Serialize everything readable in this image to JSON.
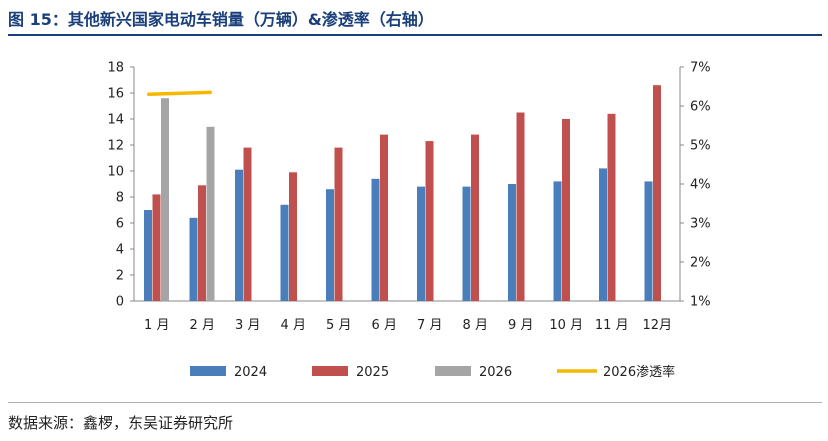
{
  "title": "图 15：其他新兴国家电动车销量（万辆）&渗透率（右轴）",
  "source": "数据来源：鑫椤，东吴证券研究所",
  "chart_data": {
    "type": "bar",
    "categories": [
      "1 月",
      "2 月",
      "3 月",
      "4 月",
      "5 月",
      "6 月",
      "7 月",
      "8 月",
      "9 月",
      "10 月",
      "11 月",
      "12月"
    ],
    "series": [
      {
        "name": "2024",
        "color": "#4a7ebb",
        "values": [
          7.0,
          6.4,
          10.1,
          7.4,
          8.6,
          9.4,
          8.8,
          8.8,
          9.0,
          9.2,
          10.2,
          9.2
        ]
      },
      {
        "name": "2025",
        "color": "#c0504d",
        "values": [
          8.2,
          8.9,
          11.8,
          9.9,
          11.8,
          12.8,
          12.3,
          12.8,
          14.5,
          14.0,
          14.4,
          16.6
        ]
      },
      {
        "name": "2026",
        "color": "#a5a5a5",
        "values": [
          15.6,
          13.4,
          null,
          null,
          null,
          null,
          null,
          null,
          null,
          null,
          null,
          null
        ]
      }
    ],
    "line_series": {
      "name": "2026渗透率",
      "color": "#f5b800",
      "axis": "right",
      "values": [
        6.3,
        6.35
      ]
    },
    "left_axis": {
      "ylim": [
        0,
        18
      ],
      "ticks": [
        "0",
        "2",
        "4",
        "6",
        "8",
        "10",
        "12",
        "14",
        "16",
        "18"
      ]
    },
    "right_axis": {
      "ylim": [
        1,
        7
      ],
      "ticks": [
        "1%",
        "2%",
        "3%",
        "4%",
        "5%",
        "6%",
        "7%"
      ]
    },
    "legend_position": "bottom"
  }
}
